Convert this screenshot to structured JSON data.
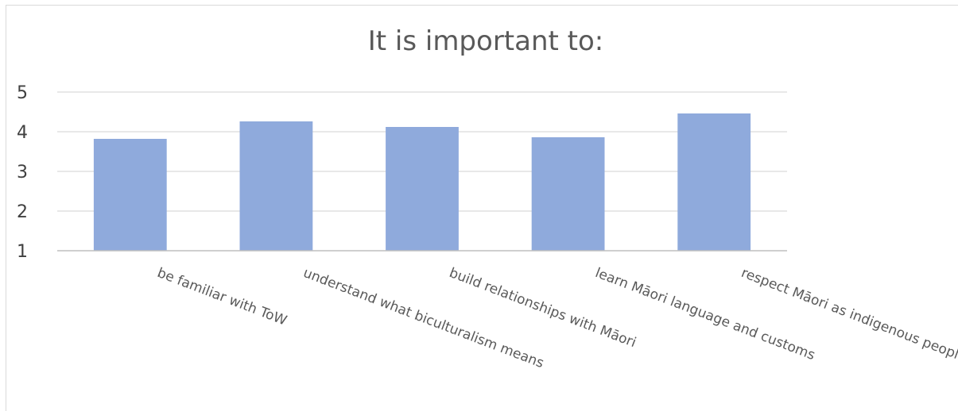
{
  "chart_data": {
    "type": "bar",
    "title": "It is important to:",
    "categories": [
      "be familiar with ToW",
      "understand what biculturalism means",
      "build relationships with Māori",
      "learn Māori language and customs",
      "respect Māori as indigenous people"
    ],
    "values": [
      3.82,
      4.26,
      4.12,
      3.86,
      4.46
    ],
    "ylim": [
      1,
      5
    ],
    "yticks": [
      1,
      2,
      3,
      4,
      5
    ],
    "xlabel": "",
    "ylabel": "",
    "grid": true,
    "legend": "none",
    "colors": {
      "bar": "#8faadc",
      "grid": "#d9d9d9",
      "axis": "#bfbfbf"
    }
  }
}
